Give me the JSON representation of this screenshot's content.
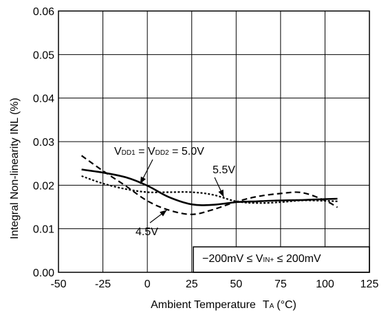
{
  "chart_data": {
    "type": "line",
    "xlabel": "Ambient Temperature",
    "xlabel_symbol": "T",
    "xlabel_sub": "A",
    "xlabel_unit": "(°C)",
    "ylabel": "Integral Non-linearity  INL (%)",
    "xlim": [
      -50,
      125
    ],
    "ylim": [
      0.0,
      0.06
    ],
    "x_ticks": [
      "-50",
      "-25",
      "0",
      "25",
      "50",
      "75",
      "100",
      "125"
    ],
    "y_ticks": [
      "0.00",
      "0.01",
      "0.02",
      "0.03",
      "0.04",
      "0.05",
      "0.06"
    ],
    "grid": true,
    "series": [
      {
        "name": "5.0V",
        "style": "solid",
        "x": [
          -37,
          -25,
          -12,
          0,
          12,
          25,
          37,
          50,
          62,
          75,
          87,
          100,
          107
        ],
        "y": [
          0.0236,
          0.0229,
          0.0218,
          0.0199,
          0.0173,
          0.0156,
          0.0155,
          0.0161,
          0.0163,
          0.0165,
          0.0166,
          0.0168,
          0.0169
        ]
      },
      {
        "name": "5.5V",
        "style": "dashed",
        "x": [
          -37,
          -25,
          -12,
          0,
          12,
          25,
          37,
          50,
          62,
          75,
          87,
          100,
          107
        ],
        "y": [
          0.0221,
          0.0204,
          0.0191,
          0.0184,
          0.0184,
          0.0184,
          0.0178,
          0.0163,
          0.0159,
          0.0161,
          0.0165,
          0.0164,
          0.0163
        ]
      },
      {
        "name": "4.5V",
        "style": "dashed",
        "x": [
          -37,
          -25,
          -12,
          0,
          12,
          25,
          37,
          50,
          62,
          75,
          87,
          100,
          107
        ],
        "y": [
          0.0268,
          0.0233,
          0.0198,
          0.0164,
          0.0143,
          0.0133,
          0.0144,
          0.0162,
          0.0174,
          0.0181,
          0.0183,
          0.0165,
          0.0149
        ]
      }
    ],
    "annotations": {
      "vdd": {
        "v": "V",
        "dd1": "DD1",
        "eq1": " = ",
        "v2": "V",
        "dd2": "DD2",
        "eq2": " = 5.0V"
      },
      "label_55": "5.5V",
      "label_45": "4.5V",
      "condition": {
        "left": "−200mV ≤ V",
        "sub": "IN+",
        "right": " ≤ 200mV"
      }
    }
  }
}
